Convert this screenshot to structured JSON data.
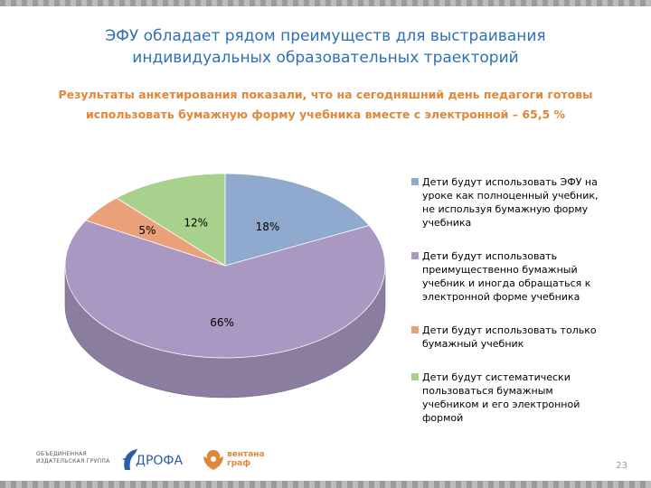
{
  "slide": {
    "title": "ЭФУ обладает рядом преимуществ для выстраивания индивидуальных образовательных траекторий",
    "subtitle": "Результаты анкетирования показали, что на сегодняшний день педагоги готовы использовать бумажную форму учебника вместе с электронной – 65,5 %",
    "page_number": "23"
  },
  "chart_data": {
    "type": "pie",
    "title": "",
    "slices": [
      {
        "label": "Дети будут использовать ЭФУ на уроке как полноценный учебник, не используя бумажную форму учебника",
        "value": 18,
        "display": "18%",
        "color": "#8fa9cf"
      },
      {
        "label": "Дети будут использовать преимущественно бумажный учебник и иногда обращаться к электронной форме учебника",
        "value": 66,
        "display": "66%",
        "color": "#a898c2"
      },
      {
        "label": "Дети будут использовать только бумажный учебник",
        "value": 5,
        "display": "5%",
        "color": "#eaa078"
      },
      {
        "label": "Дети будут систематически пользоваться бумажным учебником и его электронной формой",
        "value": 12,
        "display": "12%",
        "color": "#a9d18e"
      }
    ],
    "legend_position": "right",
    "style": "3d"
  },
  "footer": {
    "group_label": "ОБЪЕДИНЕННАЯ ИЗДАТЕЛЬСКАЯ ГРУППА",
    "publisher_1": "ДРОФА",
    "publisher_2_line1": "вентана",
    "publisher_2_line2": "граф"
  }
}
